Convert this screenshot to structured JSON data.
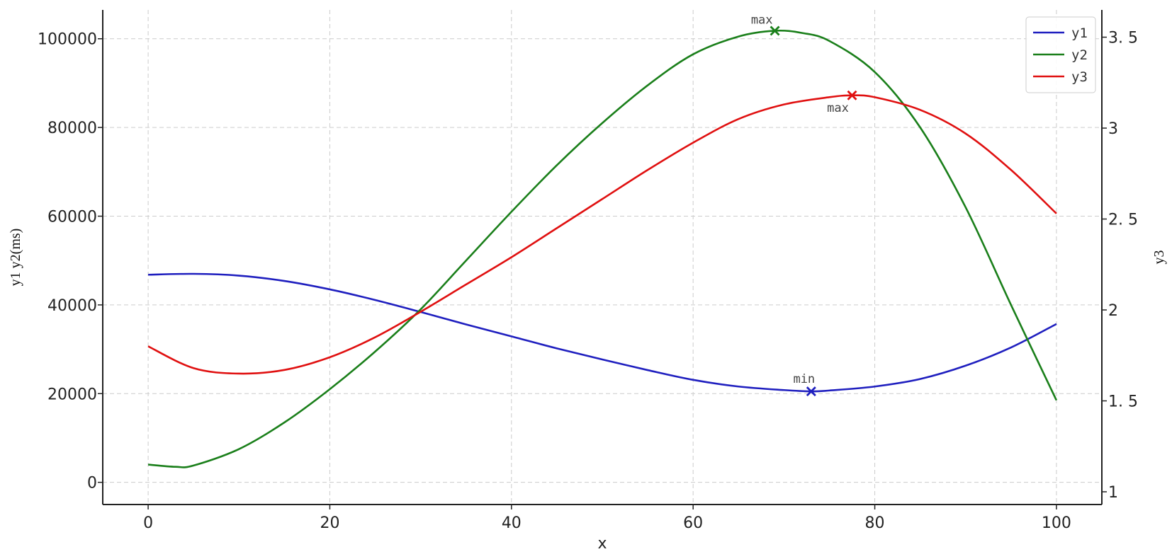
{
  "chart_data": {
    "type": "line",
    "xlabel": "x",
    "ylabel": "y1 y2(ms)",
    "y2label": "y3",
    "xlim": [
      -5,
      105
    ],
    "ylim": [
      -5000,
      106500
    ],
    "y2lim": [
      0.93,
      3.65
    ],
    "xticks": [
      0,
      20,
      40,
      60,
      80,
      100
    ],
    "yticks": [
      0,
      20000,
      40000,
      60000,
      80000,
      100000
    ],
    "y2ticks": [
      1,
      1.5,
      2,
      2.5,
      3,
      3.5
    ],
    "y2tick_labels": [
      "1",
      "1. 5",
      "2",
      "2. 5",
      "3",
      "3. 5"
    ],
    "grid": true,
    "legend_position": "top-right",
    "series": [
      {
        "name": "y1",
        "axis": "left",
        "color": "#1f1fbf",
        "x": [
          0,
          5,
          10,
          15,
          20,
          25,
          30,
          35,
          40,
          45,
          50,
          55,
          60,
          65,
          70,
          73,
          75,
          80,
          85,
          90,
          95,
          100
        ],
        "y": [
          46800,
          47000,
          46600,
          45400,
          43500,
          41100,
          38400,
          35600,
          32900,
          30200,
          27700,
          25300,
          23100,
          21600,
          20800,
          20500,
          20700,
          21600,
          23300,
          26300,
          30400,
          35700
        ]
      },
      {
        "name": "y2",
        "axis": "left",
        "color": "#1a7f1a",
        "x": [
          0,
          3,
          5,
          10,
          15,
          20,
          25,
          30,
          35,
          40,
          45,
          50,
          55,
          60,
          65,
          69,
          72,
          75,
          80,
          85,
          90,
          95,
          100
        ],
        "y": [
          4000,
          3500,
          3800,
          7500,
          13500,
          21000,
          29500,
          39000,
          50000,
          61000,
          71500,
          81000,
          89500,
          96500,
          100500,
          101800,
          101300,
          99500,
          92500,
          80000,
          62000,
          40000,
          18500
        ]
      },
      {
        "name": "y3",
        "axis": "right",
        "color": "#e01010",
        "x": [
          0,
          5,
          10,
          15,
          20,
          25,
          30,
          35,
          40,
          45,
          50,
          55,
          60,
          65,
          70,
          75,
          77.5,
          80,
          85,
          90,
          95,
          100
        ],
        "y": [
          1.8,
          1.68,
          1.65,
          1.67,
          1.74,
          1.85,
          1.99,
          2.14,
          2.29,
          2.45,
          2.61,
          2.77,
          2.92,
          3.05,
          3.13,
          3.17,
          3.18,
          3.17,
          3.1,
          2.97,
          2.77,
          2.53
        ]
      }
    ],
    "annotations": [
      {
        "text": "max",
        "series": "y2",
        "x": 69,
        "y": 101800,
        "axis": "left",
        "color": "#1a7f1a",
        "label_side": "above-left"
      },
      {
        "text": "max",
        "series": "y3",
        "x": 77.5,
        "y": 3.18,
        "axis": "right",
        "color": "#e01010",
        "label_side": "below"
      },
      {
        "text": "min",
        "series": "y1",
        "x": 73,
        "y": 20500,
        "axis": "left",
        "color": "#1f1fbf",
        "label_side": "above"
      }
    ]
  }
}
